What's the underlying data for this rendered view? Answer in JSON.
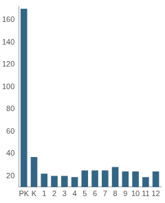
{
  "chart_data": {
    "type": "bar",
    "categories": [
      "PK",
      "K",
      "1",
      "2",
      "3",
      "4",
      "5",
      "6",
      "7",
      "8",
      "9",
      "10",
      "11",
      "12"
    ],
    "values": [
      170,
      37,
      22,
      20,
      20,
      19,
      25,
      25,
      25,
      28,
      24,
      24,
      19,
      24
    ],
    "color": "#336685",
    "ylim": [
      10,
      172
    ],
    "yticks": [
      20,
      40,
      60,
      80,
      100,
      120,
      140,
      160
    ],
    "grid": false
  }
}
